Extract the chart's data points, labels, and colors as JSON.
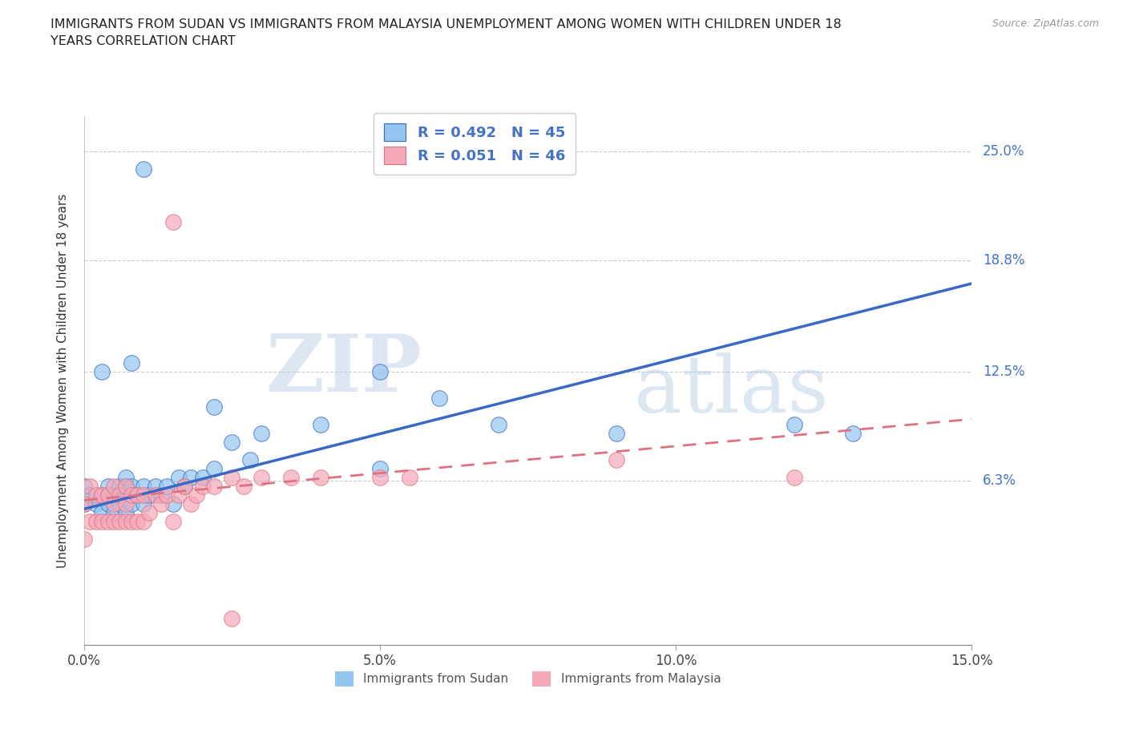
{
  "title": "IMMIGRANTS FROM SUDAN VS IMMIGRANTS FROM MALAYSIA UNEMPLOYMENT AMONG WOMEN WITH CHILDREN UNDER 18\nYEARS CORRELATION CHART",
  "source": "Source: ZipAtlas.com",
  "ylabel": "Unemployment Among Women with Children Under 18 years",
  "xlim": [
    0,
    0.15
  ],
  "ylim": [
    -0.03,
    0.27
  ],
  "yticks": [
    0.063,
    0.125,
    0.188,
    0.25
  ],
  "ytick_labels": [
    "6.3%",
    "12.5%",
    "18.8%",
    "25.0%"
  ],
  "xticks": [
    0.0,
    0.05,
    0.1,
    0.15
  ],
  "xtick_labels": [
    "0.0%",
    "5.0%",
    "10.0%",
    "15.0%"
  ],
  "sudan_color": "#92c5f0",
  "malaysia_color": "#f5a8b8",
  "sudan_line_color": "#3a68c4",
  "malaysia_line_color": "#e07080",
  "sudan_R": 0.492,
  "sudan_N": 45,
  "malaysia_R": 0.051,
  "malaysia_N": 46,
  "legend_label_sudan": "Immigrants from Sudan",
  "legend_label_malaysia": "Immigrants from Malaysia",
  "watermark_zip": "ZIP",
  "watermark_atlas": "atlas",
  "sudan_line_x0": 0.0,
  "sudan_line_y0": 0.047,
  "sudan_line_x1": 0.15,
  "sudan_line_y1": 0.175,
  "malaysia_line_x0": 0.0,
  "malaysia_line_y0": 0.052,
  "malaysia_line_x1": 0.15,
  "malaysia_line_y1": 0.098,
  "sudan_scatter_x": [
    0.0,
    0.0,
    0.001,
    0.002,
    0.003,
    0.003,
    0.004,
    0.004,
    0.005,
    0.005,
    0.006,
    0.006,
    0.007,
    0.007,
    0.007,
    0.008,
    0.008,
    0.009,
    0.01,
    0.01,
    0.011,
    0.012,
    0.013,
    0.014,
    0.015,
    0.016,
    0.017,
    0.018,
    0.02,
    0.022,
    0.025,
    0.028,
    0.03,
    0.04,
    0.05,
    0.07,
    0.09,
    0.12,
    0.13,
    0.05,
    0.06,
    0.022,
    0.003,
    0.008,
    0.01
  ],
  "sudan_scatter_y": [
    0.05,
    0.06,
    0.055,
    0.05,
    0.045,
    0.055,
    0.05,
    0.06,
    0.045,
    0.055,
    0.05,
    0.06,
    0.045,
    0.06,
    0.065,
    0.05,
    0.06,
    0.055,
    0.05,
    0.06,
    0.055,
    0.06,
    0.055,
    0.06,
    0.05,
    0.065,
    0.06,
    0.065,
    0.065,
    0.07,
    0.085,
    0.075,
    0.09,
    0.095,
    0.07,
    0.095,
    0.09,
    0.095,
    0.09,
    0.125,
    0.11,
    0.105,
    0.125,
    0.13,
    0.24
  ],
  "malaysia_scatter_x": [
    0.0,
    0.0,
    0.001,
    0.001,
    0.002,
    0.002,
    0.003,
    0.003,
    0.004,
    0.004,
    0.005,
    0.005,
    0.005,
    0.006,
    0.006,
    0.007,
    0.007,
    0.007,
    0.008,
    0.008,
    0.009,
    0.009,
    0.01,
    0.01,
    0.011,
    0.012,
    0.013,
    0.014,
    0.015,
    0.016,
    0.017,
    0.018,
    0.019,
    0.02,
    0.022,
    0.025,
    0.027,
    0.03,
    0.035,
    0.04,
    0.05,
    0.055,
    0.09,
    0.12,
    0.015,
    0.025
  ],
  "malaysia_scatter_y": [
    0.03,
    0.05,
    0.04,
    0.06,
    0.04,
    0.055,
    0.04,
    0.055,
    0.04,
    0.055,
    0.04,
    0.05,
    0.06,
    0.04,
    0.055,
    0.04,
    0.05,
    0.06,
    0.04,
    0.055,
    0.04,
    0.055,
    0.04,
    0.055,
    0.045,
    0.055,
    0.05,
    0.055,
    0.04,
    0.055,
    0.06,
    0.05,
    0.055,
    0.06,
    0.06,
    0.065,
    0.06,
    0.065,
    0.065,
    0.065,
    0.065,
    0.065,
    0.075,
    0.065,
    0.21,
    -0.015
  ]
}
